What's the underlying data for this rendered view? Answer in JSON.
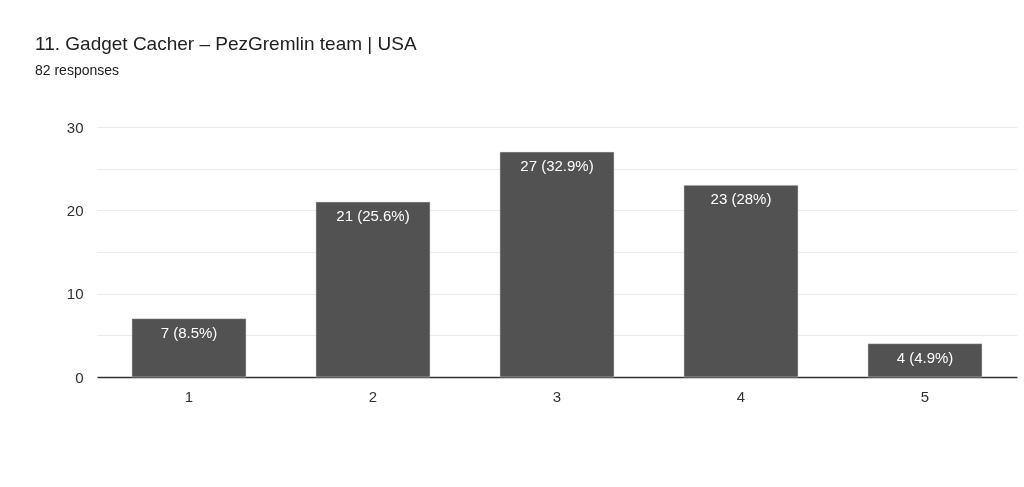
{
  "chart_data": {
    "type": "bar",
    "title": "11. Gadget Cacher – PezGremlin team | USA",
    "subtitle": "82 responses",
    "categories": [
      "1",
      "2",
      "3",
      "4",
      "5"
    ],
    "values": [
      7,
      21,
      27,
      23,
      4
    ],
    "color": "#525252",
    "value_labels": [
      "7 (8.5%)",
      "21 (25.6%)",
      "27 (32.9%)",
      "23 (28%)",
      "4 (4.9%)"
    ],
    "ylim": [
      0,
      30
    ],
    "yticks": [
      0,
      {
        "value": 5,
        "label": null
      },
      10,
      {
        "value": 15,
        "label": null
      },
      20,
      {
        "value": 25,
        "label": null
      },
      30
    ],
    "grid": "y"
  }
}
